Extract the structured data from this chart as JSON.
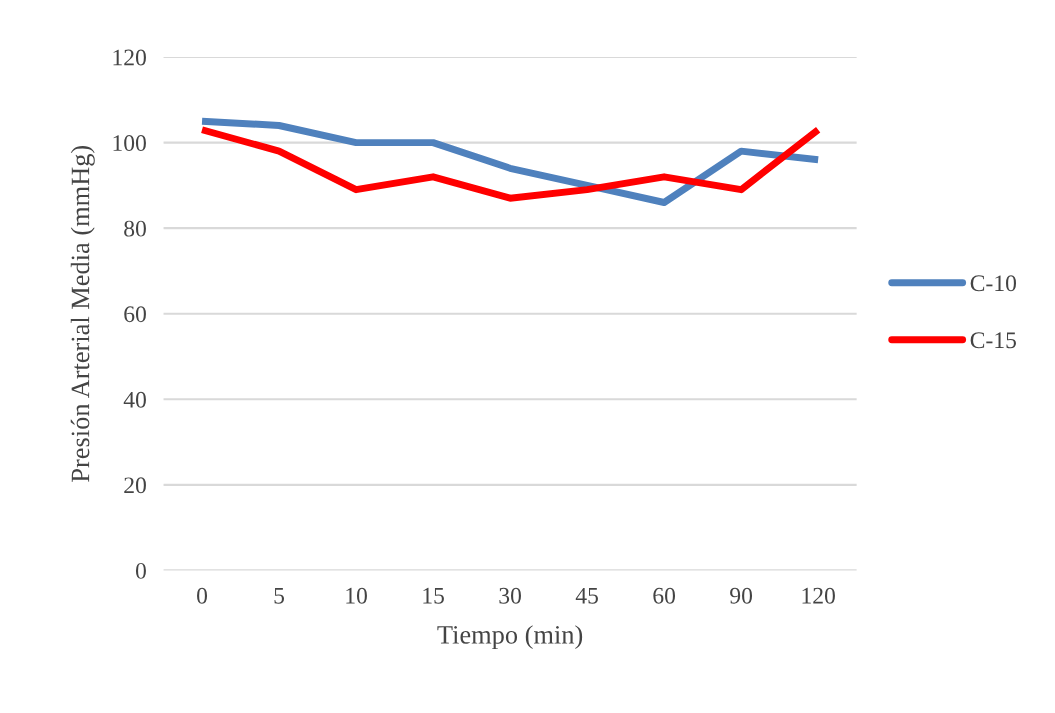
{
  "chart_data": {
    "type": "line",
    "xlabel": "Tiempo (min)",
    "ylabel": "Presión Arterial Media (mmHg)",
    "categories": [
      "0",
      "5",
      "10",
      "15",
      "30",
      "45",
      "60",
      "90",
      "120"
    ],
    "series": [
      {
        "name": "C-10",
        "color": "#4f81bd",
        "values": [
          105,
          104,
          100,
          100,
          94,
          90,
          86,
          98,
          96
        ]
      },
      {
        "name": "C-15",
        "color": "#ff0000",
        "values": [
          103,
          98,
          89,
          92,
          87,
          89,
          92,
          89,
          103
        ]
      }
    ],
    "ylim": [
      0,
      120
    ],
    "yticks": [
      0,
      20,
      40,
      60,
      80,
      100,
      120
    ],
    "grid": "y",
    "legend": "right",
    "marker": "none",
    "line_style": "solid"
  }
}
